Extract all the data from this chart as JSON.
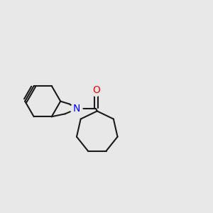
{
  "bg_color": "#e8e8e8",
  "bond_color": "#1a1a1a",
  "n_color": "#0000ff",
  "o_color": "#ff0000",
  "bond_width": 1.5,
  "font_size_atom": 10,
  "figsize": [
    3.0,
    3.0
  ],
  "dpi": 100
}
